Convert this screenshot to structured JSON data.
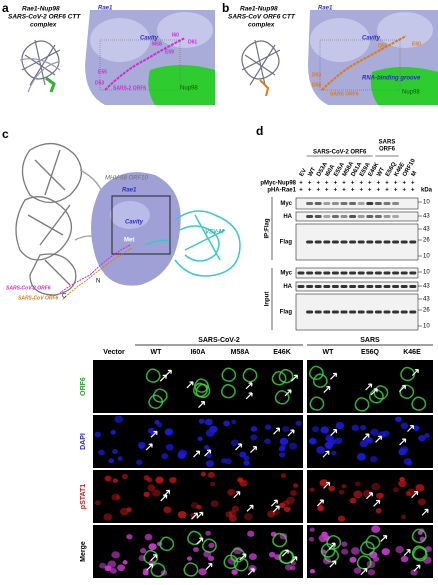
{
  "panels": {
    "a": {
      "letter": "a",
      "title": [
        "Rae1-Nup98",
        "SARS-CoV-2 ORF6 CTT",
        "complex"
      ],
      "rae1": "Rae1",
      "cavity": "Cavity",
      "nup98": "Nup98",
      "orf6": "SARS-2 ORF6",
      "residues": [
        "E55",
        "M58",
        "I60",
        "D61",
        "D53",
        "E59"
      ]
    },
    "b": {
      "letter": "b",
      "title": [
        "Rae1-Nup98",
        "SARS-CoV ORF6 CTT",
        "complex"
      ],
      "rae1": "Rae1",
      "cavity": "Cavity",
      "nup98": "Nup98",
      "groove": "RNA-binding groove",
      "orf6": "SARS ORF6",
      "residues": [
        "D53",
        "D58",
        "Q56",
        "E60"
      ]
    },
    "c": {
      "letter": "c",
      "orf10": "MHV-68 ORF10",
      "rae1": "Rae1",
      "vsvm": "VSV-M",
      "cavity": "Cavity",
      "met": "Met",
      "cov2": "SARS-CoV-2 ORF6",
      "cov": "SARS-CoV ORF6",
      "n": "N",
      "c": "C"
    },
    "d": {
      "letter": "d",
      "group1": "SARS-CoV-2 ORF6",
      "group2": [
        "SARS",
        "ORF6"
      ],
      "lanes": [
        "EV",
        "WT",
        "D53A",
        "I60A",
        "E55A",
        "M58A",
        "D61A",
        "E59A",
        "E46K",
        "WT",
        "E56Q",
        "K46E",
        "ORF10",
        "M"
      ],
      "rows": [
        {
          "label": "pMyc-Nup98",
          "signs": [
            "+",
            "+",
            "+",
            "+",
            "+",
            "+",
            "+",
            "+",
            "+",
            "+",
            "+",
            "+",
            "+",
            "+"
          ]
        },
        {
          "label": "pHA-Rae1",
          "signs": [
            "+",
            "+",
            "+",
            "+",
            "+",
            "+",
            "+",
            "+",
            "+",
            "+",
            "+",
            "+",
            "+",
            "+"
          ]
        }
      ],
      "kda": "kDa",
      "ip": "IP:Flag",
      "input": "Input",
      "ip_blots": [
        "Myc",
        "HA",
        "Flag"
      ],
      "input_blots": [
        "Myc",
        "HA",
        "Flag"
      ],
      "ip_markers": [
        "10",
        "43",
        "43",
        "26",
        "10"
      ],
      "input_markers": [
        "10",
        "43",
        "43",
        "26",
        "10"
      ]
    },
    "e": {
      "group1": "SARS-CoV-2",
      "group2": "SARS",
      "columns": [
        "Vector",
        "WT",
        "I60A",
        "M58A",
        "E46K",
        "WT",
        "E56Q",
        "K46E"
      ],
      "rows": [
        "ORF6",
        "DAPI",
        "pSTAT1",
        "Merge"
      ]
    }
  }
}
